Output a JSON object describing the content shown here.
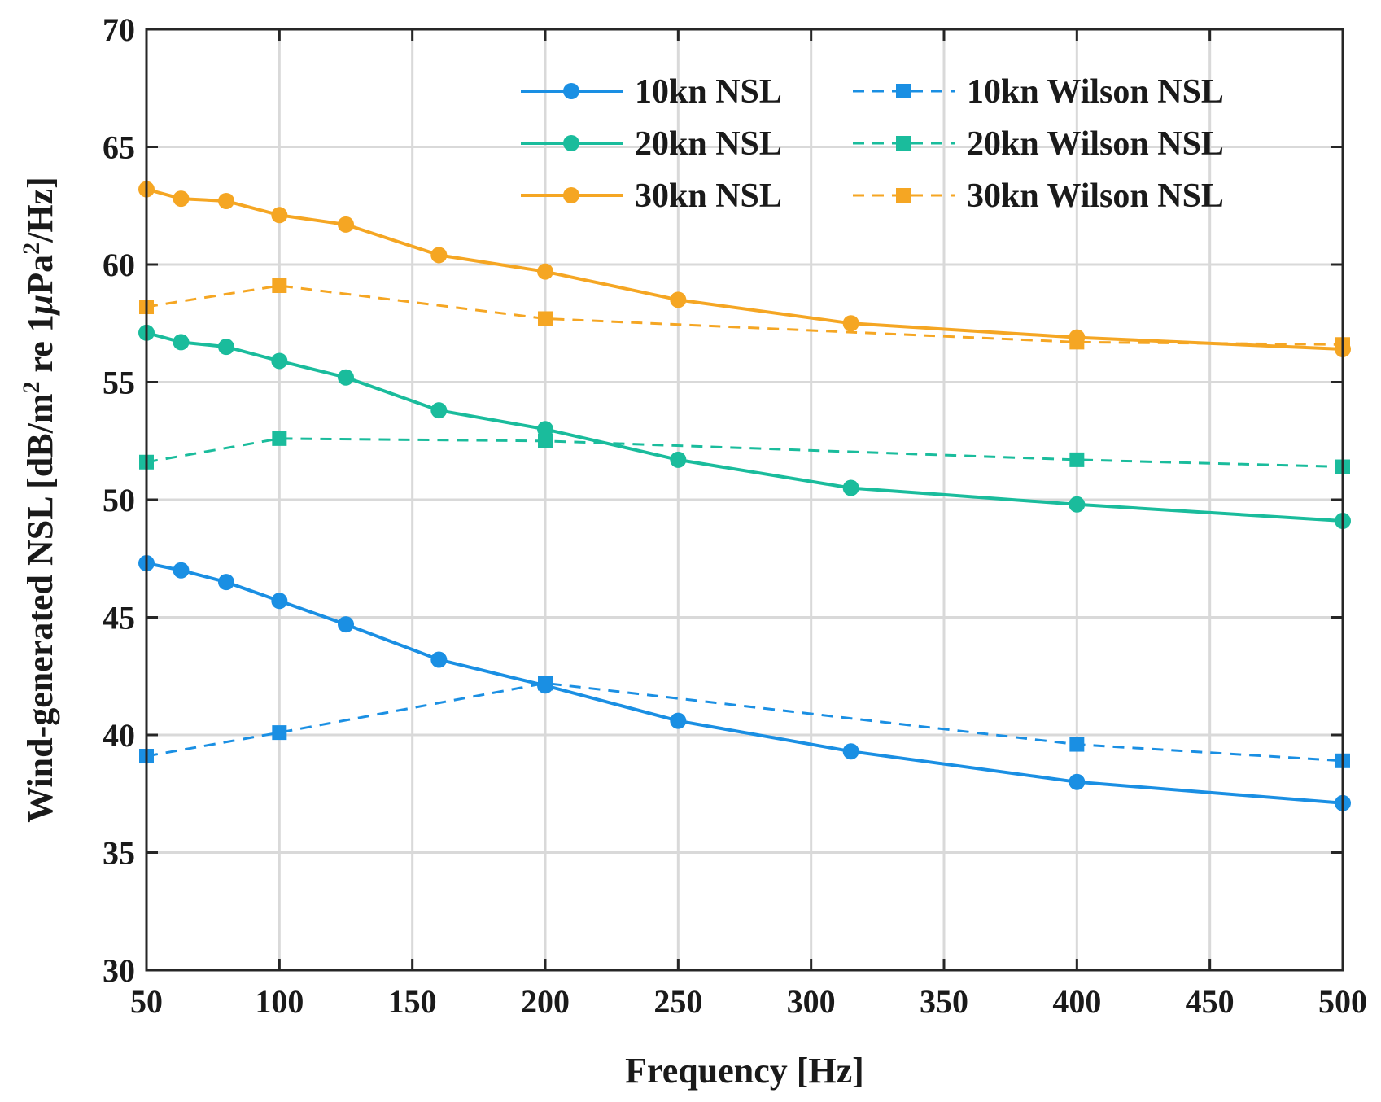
{
  "chart_data": {
    "type": "line",
    "title": "",
    "xlabel": "Frequency [Hz]",
    "ylabel": {
      "prefix": "Wind-generated NSL [dB/m",
      "sup1": "2",
      "mid": " re 1",
      "mu": "μ",
      "mid2": "Pa",
      "sup2": "2",
      "suffix": "/Hz]"
    },
    "xlim": [
      50,
      500
    ],
    "ylim": [
      30,
      70
    ],
    "xticks": [
      50,
      100,
      150,
      200,
      250,
      300,
      350,
      400,
      450,
      500
    ],
    "yticks": [
      30,
      35,
      40,
      45,
      50,
      55,
      60,
      65,
      70
    ],
    "grid": true,
    "legend_position": "top-right",
    "series": [
      {
        "name": "10kn NSL",
        "color": "#1a8fe3",
        "style": "solid",
        "marker": "circle",
        "x": [
          50,
          63,
          80,
          100,
          125,
          160,
          200,
          250,
          315,
          400,
          500
        ],
        "y": [
          47.3,
          47.0,
          46.5,
          45.7,
          44.7,
          43.2,
          42.1,
          40.6,
          39.3,
          38.0,
          37.1
        ]
      },
      {
        "name": "20kn NSL",
        "color": "#1abc9c",
        "style": "solid",
        "marker": "circle",
        "x": [
          50,
          63,
          80,
          100,
          125,
          160,
          200,
          250,
          315,
          400,
          500
        ],
        "y": [
          57.1,
          56.7,
          56.5,
          55.9,
          55.2,
          53.8,
          53.0,
          51.7,
          50.5,
          49.8,
          49.1
        ]
      },
      {
        "name": "30kn NSL",
        "color": "#f5a623",
        "style": "solid",
        "marker": "circle",
        "x": [
          50,
          63,
          80,
          100,
          125,
          160,
          200,
          250,
          315,
          400,
          500
        ],
        "y": [
          63.2,
          62.8,
          62.7,
          62.1,
          61.7,
          60.4,
          59.7,
          58.5,
          57.5,
          56.9,
          56.4
        ]
      },
      {
        "name": "10kn Wilson NSL",
        "color": "#1a8fe3",
        "style": "dashed",
        "marker": "square",
        "x": [
          50,
          100,
          200,
          400,
          500
        ],
        "y": [
          39.1,
          40.1,
          42.2,
          39.6,
          38.9
        ]
      },
      {
        "name": "20kn Wilson NSL",
        "color": "#1abc9c",
        "style": "dashed",
        "marker": "square",
        "x": [
          50,
          100,
          200,
          400,
          500
        ],
        "y": [
          51.6,
          52.6,
          52.5,
          51.7,
          51.4
        ]
      },
      {
        "name": "30kn Wilson NSL",
        "color": "#f5a623",
        "style": "dashed",
        "marker": "square",
        "x": [
          50,
          100,
          200,
          400,
          500
        ],
        "y": [
          58.2,
          59.1,
          57.7,
          56.7,
          56.6
        ]
      }
    ]
  }
}
